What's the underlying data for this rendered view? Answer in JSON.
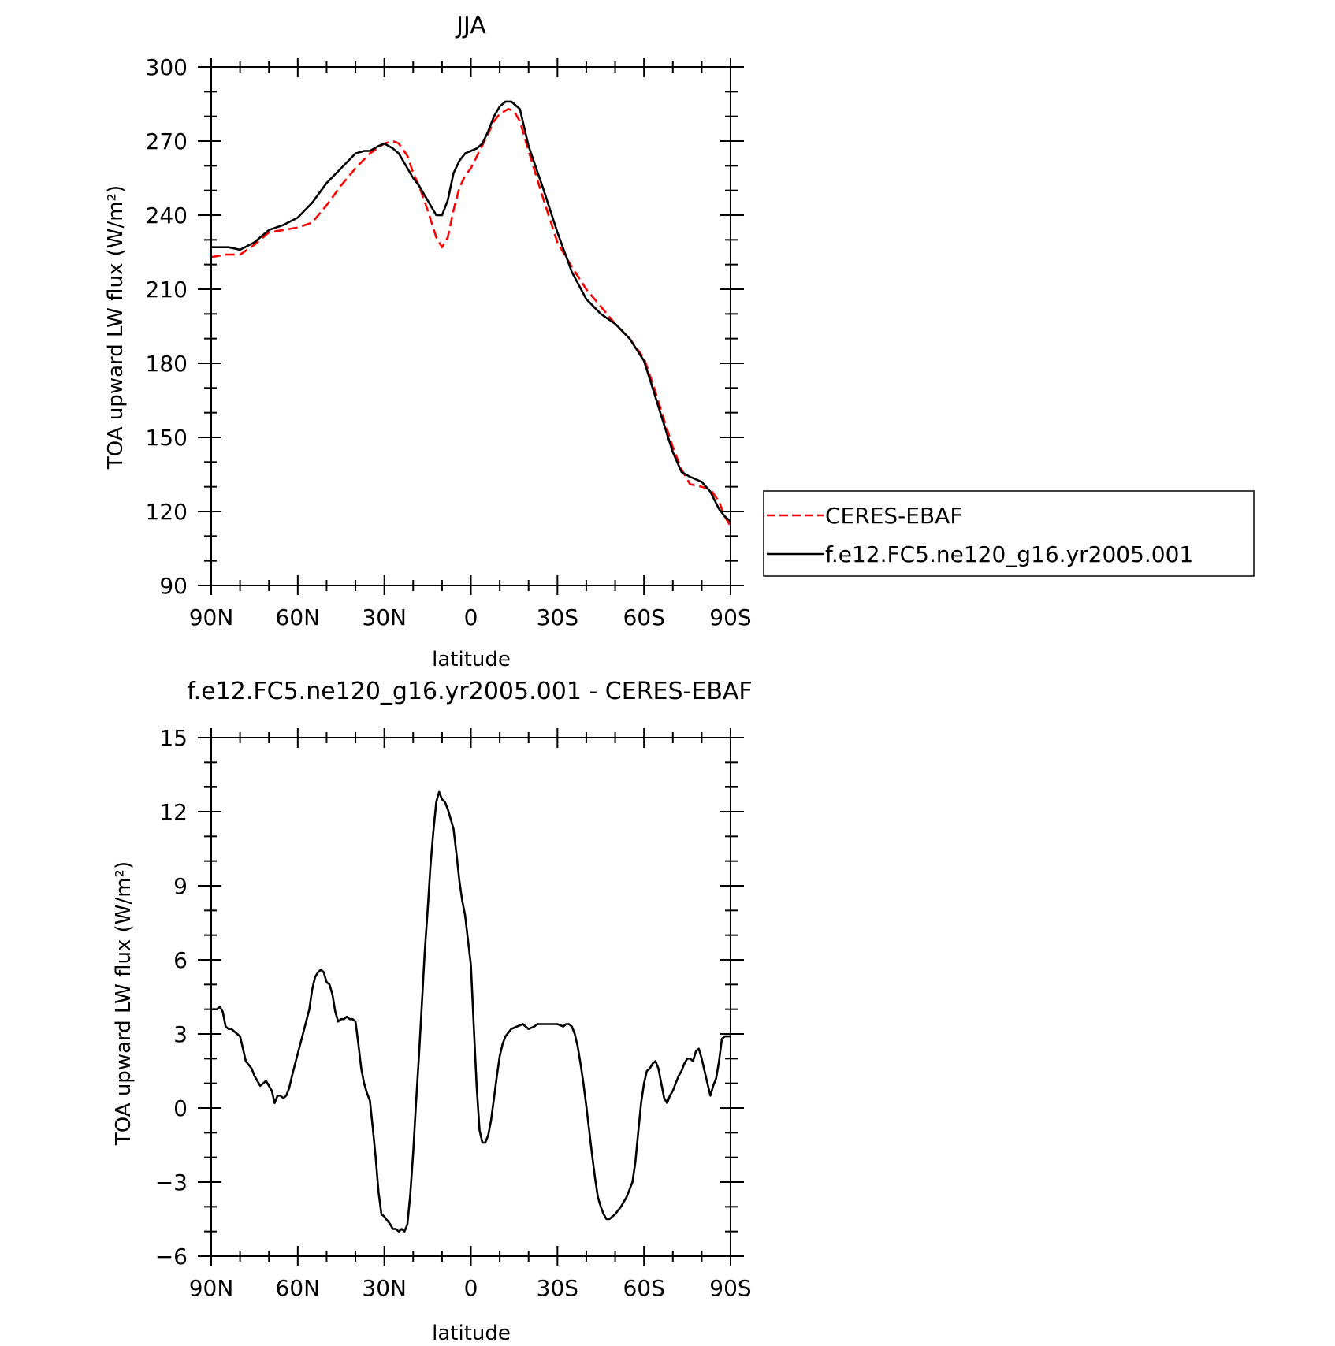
{
  "chart_data": [
    {
      "type": "line",
      "title": "JJA",
      "xlabel": "latitude",
      "ylabel": "TOA upward LW flux (W/m²)",
      "xlim": [
        90,
        -90
      ],
      "ylim": [
        90,
        300
      ],
      "xticks": [
        90,
        60,
        30,
        0,
        -30,
        -60,
        -90
      ],
      "xtick_labels": [
        "90N",
        "60N",
        "30N",
        "0",
        "30S",
        "60S",
        "90S"
      ],
      "yticks": [
        90,
        120,
        150,
        180,
        210,
        240,
        270,
        300
      ],
      "ytick_labels": [
        "90",
        "120",
        "150",
        "180",
        "210",
        "240",
        "270",
        "300"
      ],
      "grid": false,
      "legend": "right",
      "series": [
        {
          "name": "CERES-EBAF",
          "color": "#ff0000",
          "dash": "dashed",
          "x": [
            90,
            85,
            80,
            75,
            70,
            65,
            60,
            55,
            50,
            45,
            40,
            35,
            30,
            27,
            25,
            22,
            20,
            18,
            15,
            12,
            10,
            8,
            6,
            4,
            2,
            0,
            -3,
            -6,
            -8,
            -10,
            -13,
            -15,
            -17,
            -20,
            -25,
            -30,
            -35,
            -40,
            -45,
            -50,
            -55,
            -60,
            -63,
            -67,
            -70,
            -73,
            -76,
            -80,
            -83,
            -86,
            -88,
            -90
          ],
          "y": [
            223,
            224,
            224,
            228,
            233,
            234,
            235,
            237,
            244,
            252,
            259,
            265,
            269,
            270,
            269,
            264,
            257,
            252,
            242,
            231,
            227,
            231,
            242,
            251,
            256,
            259,
            266,
            273,
            278,
            281,
            283,
            282,
            278,
            266,
            247,
            229,
            219,
            210,
            203,
            196,
            190,
            182,
            172,
            157,
            146,
            137,
            131,
            130,
            129,
            124,
            118,
            114
          ]
        },
        {
          "name": "f.e12.FC5.ne120_g16.yr2005.001",
          "color": "#000000",
          "dash": "solid",
          "x": [
            90,
            87,
            84,
            80,
            75,
            70,
            65,
            60,
            55,
            50,
            45,
            40,
            37,
            35,
            32,
            30,
            27,
            25,
            22,
            20,
            18,
            15,
            12,
            10,
            8,
            6,
            4,
            2,
            0,
            -2,
            -4,
            -6,
            -8,
            -10,
            -12,
            -14,
            -15,
            -17,
            -20,
            -25,
            -30,
            -35,
            -40,
            -45,
            -50,
            -55,
            -60,
            -63,
            -67,
            -70,
            -73,
            -76,
            -80,
            -83,
            -86,
            -88,
            -90
          ],
          "y": [
            227,
            227,
            227,
            226,
            229,
            234,
            236,
            239,
            245,
            253,
            259,
            265,
            266,
            266,
            268,
            269,
            267,
            265,
            259,
            255,
            252,
            246,
            240,
            240,
            246,
            257,
            262,
            265,
            266,
            267,
            269,
            274,
            280,
            284,
            286,
            286,
            285,
            283,
            268,
            251,
            233,
            217,
            206,
            200,
            196,
            190,
            181,
            170,
            155,
            144,
            136,
            134,
            132,
            128,
            121,
            118,
            116
          ]
        }
      ]
    },
    {
      "type": "line",
      "title": "f.e12.FC5.ne120_g16.yr2005.001 - CERES-EBAF",
      "xlabel": "latitude",
      "ylabel": "TOA upward LW flux (W/m²)",
      "xlim": [
        90,
        -90
      ],
      "ylim": [
        -6,
        15
      ],
      "xticks": [
        90,
        60,
        30,
        0,
        -30,
        -60,
        -90
      ],
      "xtick_labels": [
        "90N",
        "60N",
        "30N",
        "0",
        "30S",
        "60S",
        "90S"
      ],
      "yticks": [
        -6,
        -3,
        0,
        3,
        6,
        9,
        12,
        15
      ],
      "ytick_labels": [
        "−6",
        "−3",
        "0",
        "3",
        "6",
        "9",
        "12",
        "15"
      ],
      "grid": false,
      "series": [
        {
          "color": "#000000",
          "dash": "solid",
          "x": [
            90,
            88,
            87,
            86,
            85,
            84,
            83,
            82,
            80,
            79,
            78,
            76,
            75,
            73,
            72,
            71,
            70,
            69,
            68,
            67,
            66,
            65,
            64,
            63,
            62,
            60,
            58,
            56,
            55,
            54,
            53,
            52,
            51,
            50,
            49,
            48,
            47,
            46,
            45,
            44,
            43,
            42,
            41,
            40,
            39,
            38,
            37,
            36,
            35,
            34,
            33,
            32,
            31,
            30,
            28,
            27,
            26,
            25,
            24,
            23,
            22,
            21,
            20,
            19,
            18,
            17,
            16,
            15,
            14,
            13,
            12,
            11,
            10,
            9,
            8,
            7,
            6,
            5,
            4,
            3,
            2,
            1,
            0,
            -1,
            -2,
            -3,
            -4,
            -5,
            -6,
            -7,
            -8,
            -9,
            -10,
            -11,
            -12,
            -14,
            -16,
            -18,
            -20,
            -22,
            -23,
            -24,
            -26,
            -28,
            -30,
            -32,
            -33,
            -34,
            -35,
            -36,
            -37,
            -38,
            -39,
            -40,
            -41,
            -42,
            -43,
            -44,
            -45,
            -46,
            -47,
            -48,
            -49,
            -50,
            -52,
            -54,
            -56,
            -57,
            -58,
            -59,
            -60,
            -61,
            -62,
            -63,
            -64,
            -65,
            -66,
            -67,
            -68,
            -69,
            -70,
            -71,
            -72,
            -73,
            -74,
            -75,
            -76,
            -77,
            -78,
            -79,
            -80,
            -81,
            -82,
            -83,
            -84,
            -85,
            -86,
            -87,
            -88,
            -89,
            -90
          ],
          "y": [
            4.0,
            4.0,
            4.1,
            3.9,
            3.3,
            3.2,
            3.2,
            3.1,
            2.9,
            2.4,
            1.9,
            1.6,
            1.3,
            0.9,
            1.0,
            1.1,
            0.9,
            0.7,
            0.2,
            0.5,
            0.5,
            0.4,
            0.5,
            0.8,
            1.3,
            2.2,
            3.1,
            4.0,
            4.8,
            5.3,
            5.5,
            5.6,
            5.5,
            5.1,
            5.0,
            4.6,
            3.9,
            3.5,
            3.6,
            3.6,
            3.7,
            3.6,
            3.6,
            3.5,
            2.6,
            1.6,
            1.0,
            0.6,
            0.3,
            -0.8,
            -2.0,
            -3.4,
            -4.3,
            -4.4,
            -4.7,
            -4.9,
            -4.9,
            -5.0,
            -4.9,
            -5.0,
            -4.7,
            -3.5,
            -1.8,
            0.2,
            2.1,
            4.2,
            6.3,
            8.0,
            9.8,
            11.2,
            12.4,
            12.8,
            12.5,
            12.4,
            12.1,
            11.7,
            11.3,
            10.3,
            9.2,
            8.4,
            7.8,
            6.8,
            5.8,
            3.3,
            0.9,
            -0.9,
            -1.4,
            -1.4,
            -1.1,
            -0.5,
            0.4,
            1.3,
            2.1,
            2.6,
            2.9,
            3.2,
            3.3,
            3.4,
            3.2,
            3.3,
            3.4,
            3.4,
            3.4,
            3.4,
            3.4,
            3.3,
            3.4,
            3.4,
            3.3,
            3.0,
            2.5,
            1.8,
            1.0,
            0.1,
            -0.9,
            -1.9,
            -2.8,
            -3.6,
            -4.0,
            -4.3,
            -4.5,
            -4.5,
            -4.4,
            -4.3,
            -4.0,
            -3.6,
            -3.0,
            -2.2,
            -1.0,
            0.2,
            1.0,
            1.5,
            1.6,
            1.8,
            1.9,
            1.6,
            1.0,
            0.4,
            0.2,
            0.5,
            0.7,
            1.0,
            1.3,
            1.5,
            1.8,
            2.0,
            2.0,
            1.9,
            2.3,
            2.4,
            2.0,
            1.5,
            1.0,
            0.5,
            0.9,
            1.2,
            1.9,
            2.8,
            2.9,
            2.9,
            2.9
          ]
        }
      ]
    }
  ]
}
